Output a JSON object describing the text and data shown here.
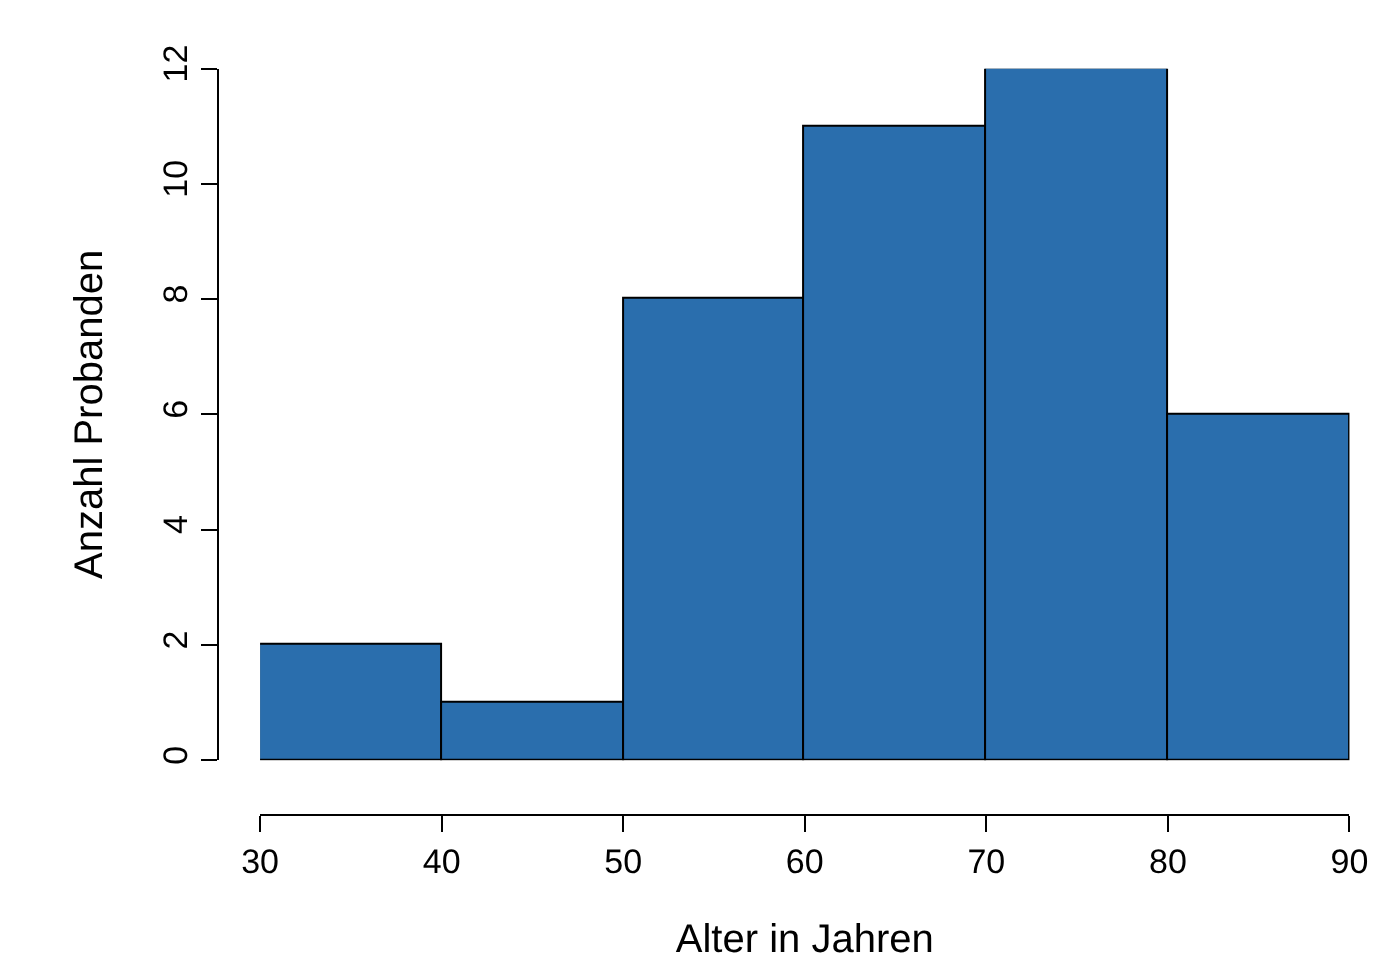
{
  "chart_data": {
    "type": "histogram",
    "xlabel": "Alter in Jahren",
    "ylabel": "Anzahl Probanden",
    "bins": [
      30,
      40,
      50,
      60,
      70,
      80,
      90
    ],
    "values": [
      2,
      1,
      8,
      11,
      12,
      6
    ],
    "color": "#2a6ead",
    "xlim": [
      30,
      90
    ],
    "xticks": [
      30,
      40,
      50,
      60,
      70,
      80,
      90
    ],
    "ylim": [
      0,
      12
    ],
    "yticks": [
      0,
      2,
      4,
      6,
      8,
      10,
      12
    ]
  }
}
